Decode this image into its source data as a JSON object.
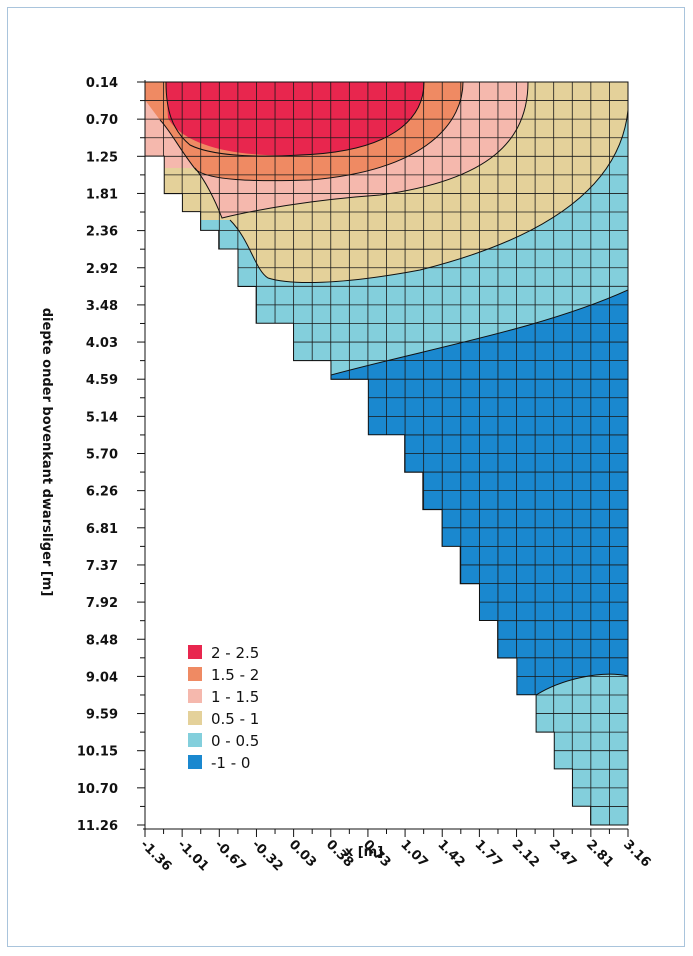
{
  "chart_data": {
    "type": "heatmap",
    "xlabel": "x [m]",
    "ylabel": "diepte onder bovenkant dwarsliger [m]",
    "x_ticks": [
      "-1.36",
      "-1.01",
      "-0.67",
      "-0.32",
      "0.03",
      "0.38",
      "0.73",
      "1.07",
      "1.42",
      "1.77",
      "2.12",
      "2.47",
      "2.81",
      "3.16"
    ],
    "y_ticks": [
      "0.14",
      "0.70",
      "1.25",
      "1.81",
      "2.36",
      "2.92",
      "3.48",
      "4.03",
      "4.59",
      "5.14",
      "5.70",
      "6.26",
      "6.81",
      "7.37",
      "7.92",
      "8.48",
      "9.04",
      "9.59",
      "10.15",
      "10.70",
      "11.26"
    ],
    "xlim": [
      -1.36,
      3.16
    ],
    "ylim": [
      0.14,
      11.26
    ],
    "y_inverted": true,
    "grid": true,
    "legend_position": "lower-left",
    "legend": [
      {
        "label": "2   - 2.5",
        "color": "#e8264e"
      },
      {
        "label": "1.5 - 2",
        "color": "#ef8a63"
      },
      {
        "label": "1   - 1.5",
        "color": "#f5b8ad"
      },
      {
        "label": "0.5 - 1",
        "color": "#e4d19a"
      },
      {
        "label": "0   - 0.5",
        "color": "#83cfdc"
      },
      {
        "label": "-1  - 0",
        "color": "#1a88cf"
      }
    ],
    "region_boundary": {
      "description": "Domain lower boundary (depth of lower edge) at x",
      "x": [
        -1.36,
        -1.18,
        -1.01,
        -0.84,
        -0.67,
        -0.49,
        -0.32,
        0.03,
        0.38,
        0.73,
        1.07,
        1.24,
        1.42,
        1.59,
        1.77,
        1.94,
        2.12,
        2.3,
        2.47,
        2.64,
        2.81,
        2.99,
        3.16
      ],
      "depth": [
        0.7,
        1.25,
        1.81,
        2.08,
        2.36,
        2.64,
        3.2,
        3.75,
        4.31,
        4.59,
        5.42,
        5.98,
        6.54,
        7.09,
        7.65,
        8.2,
        8.76,
        9.31,
        9.87,
        10.42,
        10.98,
        11.26,
        11.26
      ]
    },
    "contour_regions": [
      {
        "range": "2 - 2.5",
        "color": "#e8264e"
      },
      {
        "range": "1.5 - 2",
        "color": "#ef8a63"
      },
      {
        "range": "1 - 1.5",
        "color": "#f5b8ad"
      },
      {
        "range": "0.5 - 1",
        "color": "#e4d19a"
      },
      {
        "range": "0 - 0.5",
        "color": "#83cfdc"
      },
      {
        "range": "-1 - 0",
        "color": "#1a88cf"
      }
    ]
  }
}
